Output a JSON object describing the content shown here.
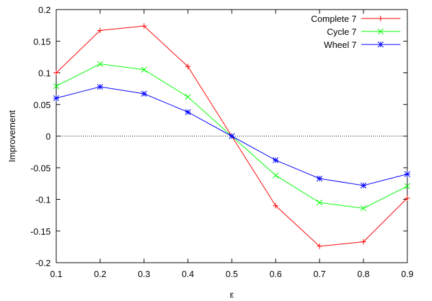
{
  "chart_data": {
    "type": "line",
    "xlabel": "ε",
    "ylabel": "Improvement",
    "xlim": [
      0.1,
      0.9
    ],
    "ylim": [
      -0.2,
      0.2
    ],
    "x_ticks": [
      "0.1",
      "0.2",
      "0.3",
      "0.4",
      "0.5",
      "0.6",
      "0.7",
      "0.8",
      "0.9"
    ],
    "y_ticks": [
      "0.2",
      "0.15",
      "0.1",
      "0.05",
      "0",
      "-0.05",
      "-0.1",
      "-0.15",
      "-0.2"
    ],
    "x_tick_values": [
      0.1,
      0.2,
      0.3,
      0.4,
      0.5,
      0.6,
      0.7,
      0.8,
      0.9
    ],
    "y_tick_values": [
      0.2,
      0.15,
      0.1,
      0.05,
      0,
      -0.05,
      -0.1,
      -0.15,
      -0.2
    ],
    "zero_line": true,
    "legend_position": "top-right",
    "series": [
      {
        "name": "Complete 7",
        "color": "#ff0000",
        "marker": "plus",
        "x": [
          0.1,
          0.2,
          0.3,
          0.4,
          0.5,
          0.6,
          0.7,
          0.8,
          0.9
        ],
        "y": [
          0.1,
          0.167,
          0.174,
          0.11,
          0,
          -0.11,
          -0.174,
          -0.167,
          -0.098
        ]
      },
      {
        "name": "Cycle 7",
        "color": "#00ff00",
        "marker": "cross",
        "x": [
          0.1,
          0.2,
          0.3,
          0.4,
          0.5,
          0.6,
          0.7,
          0.8,
          0.9
        ],
        "y": [
          0.079,
          0.114,
          0.105,
          0.062,
          0,
          -0.062,
          -0.105,
          -0.114,
          -0.079
        ]
      },
      {
        "name": "Wheel 7",
        "color": "#0000ff",
        "marker": "star",
        "x": [
          0.1,
          0.2,
          0.3,
          0.4,
          0.5,
          0.6,
          0.7,
          0.8,
          0.9
        ],
        "y": [
          0.06,
          0.078,
          0.067,
          0.038,
          0,
          -0.038,
          -0.067,
          -0.078,
          -0.06
        ]
      }
    ]
  }
}
